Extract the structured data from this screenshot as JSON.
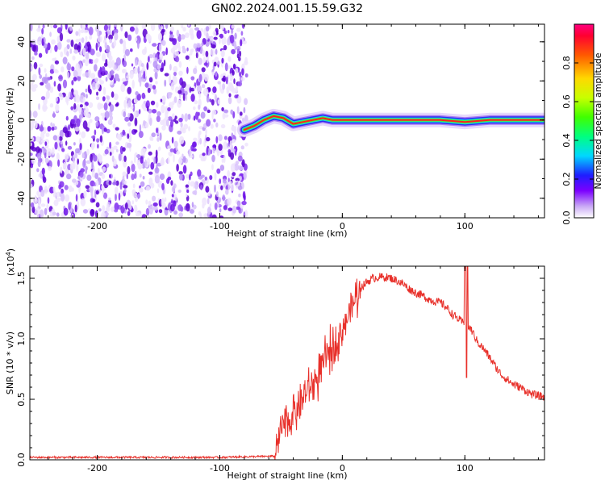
{
  "title": "GN02.2024.001.15.59.G32",
  "chart_data": [
    {
      "type": "heatmap",
      "xlabel": "Height of straight line (km)",
      "ylabel": "Frequency (Hz)",
      "xlim": [
        -255,
        165
      ],
      "ylim": [
        -50,
        49
      ],
      "x_ticks": [
        "-200",
        "-100",
        "0",
        "100"
      ],
      "y_ticks": [
        "40",
        "20",
        "0",
        "-20",
        "-40"
      ],
      "noise_region_x": [
        -255,
        -78
      ],
      "ridge": [
        {
          "x": -80,
          "y": -5
        },
        {
          "x": -72,
          "y": -3
        },
        {
          "x": -64,
          "y": 0
        },
        {
          "x": -56,
          "y": 2
        },
        {
          "x": -48,
          "y": 1
        },
        {
          "x": -40,
          "y": -2
        },
        {
          "x": -32,
          "y": -1
        },
        {
          "x": -24,
          "y": 0
        },
        {
          "x": -16,
          "y": 1
        },
        {
          "x": -8,
          "y": 0
        },
        {
          "x": 0,
          "y": 0
        },
        {
          "x": 40,
          "y": 0
        },
        {
          "x": 80,
          "y": 0
        },
        {
          "x": 100,
          "y": -1
        },
        {
          "x": 120,
          "y": 0
        },
        {
          "x": 165,
          "y": 0
        }
      ],
      "colorbar": {
        "label": "Normalized spectral amplitude",
        "range": [
          0,
          1
        ],
        "ticks": [
          "0.0",
          "0.2",
          "0.4",
          "0.6",
          "0.8"
        ]
      }
    },
    {
      "type": "line",
      "xlabel": "Height of straight line (km)",
      "ylabel": "SNR (10 * v/v)",
      "y_multiplier": "(x10",
      "y_multiplier_exp": "4",
      "y_multiplier_close": ")",
      "xlim": [
        -255,
        165
      ],
      "ylim": [
        0,
        1.6
      ],
      "x_ticks": [
        "-200",
        "-100",
        "0",
        "100"
      ],
      "y_ticks": [
        "0.0",
        "0.5",
        "1.0",
        "1.5"
      ],
      "color": "#e8302a",
      "x": [
        -255,
        -100,
        -55,
        -50,
        -45,
        -40,
        -35,
        -30,
        -25,
        -20,
        -15,
        -10,
        -5,
        0,
        5,
        10,
        15,
        20,
        25,
        30,
        35,
        40,
        45,
        50,
        55,
        60,
        65,
        70,
        75,
        80,
        85,
        90,
        95,
        100,
        105,
        110,
        115,
        120,
        125,
        130,
        135,
        140,
        145,
        150,
        155,
        160,
        165
      ],
      "y": [
        0.02,
        0.02,
        0.03,
        0.25,
        0.32,
        0.38,
        0.45,
        0.55,
        0.6,
        0.68,
        0.8,
        0.9,
        0.98,
        1.08,
        1.2,
        1.32,
        1.42,
        1.47,
        1.5,
        1.51,
        1.51,
        1.5,
        1.48,
        1.45,
        1.41,
        1.38,
        1.36,
        1.33,
        1.31,
        1.3,
        1.26,
        1.2,
        1.16,
        1.12,
        1.08,
        0.98,
        0.92,
        0.85,
        0.77,
        0.7,
        0.66,
        0.62,
        0.6,
        0.57,
        0.54,
        0.53,
        0.52
      ]
    }
  ]
}
